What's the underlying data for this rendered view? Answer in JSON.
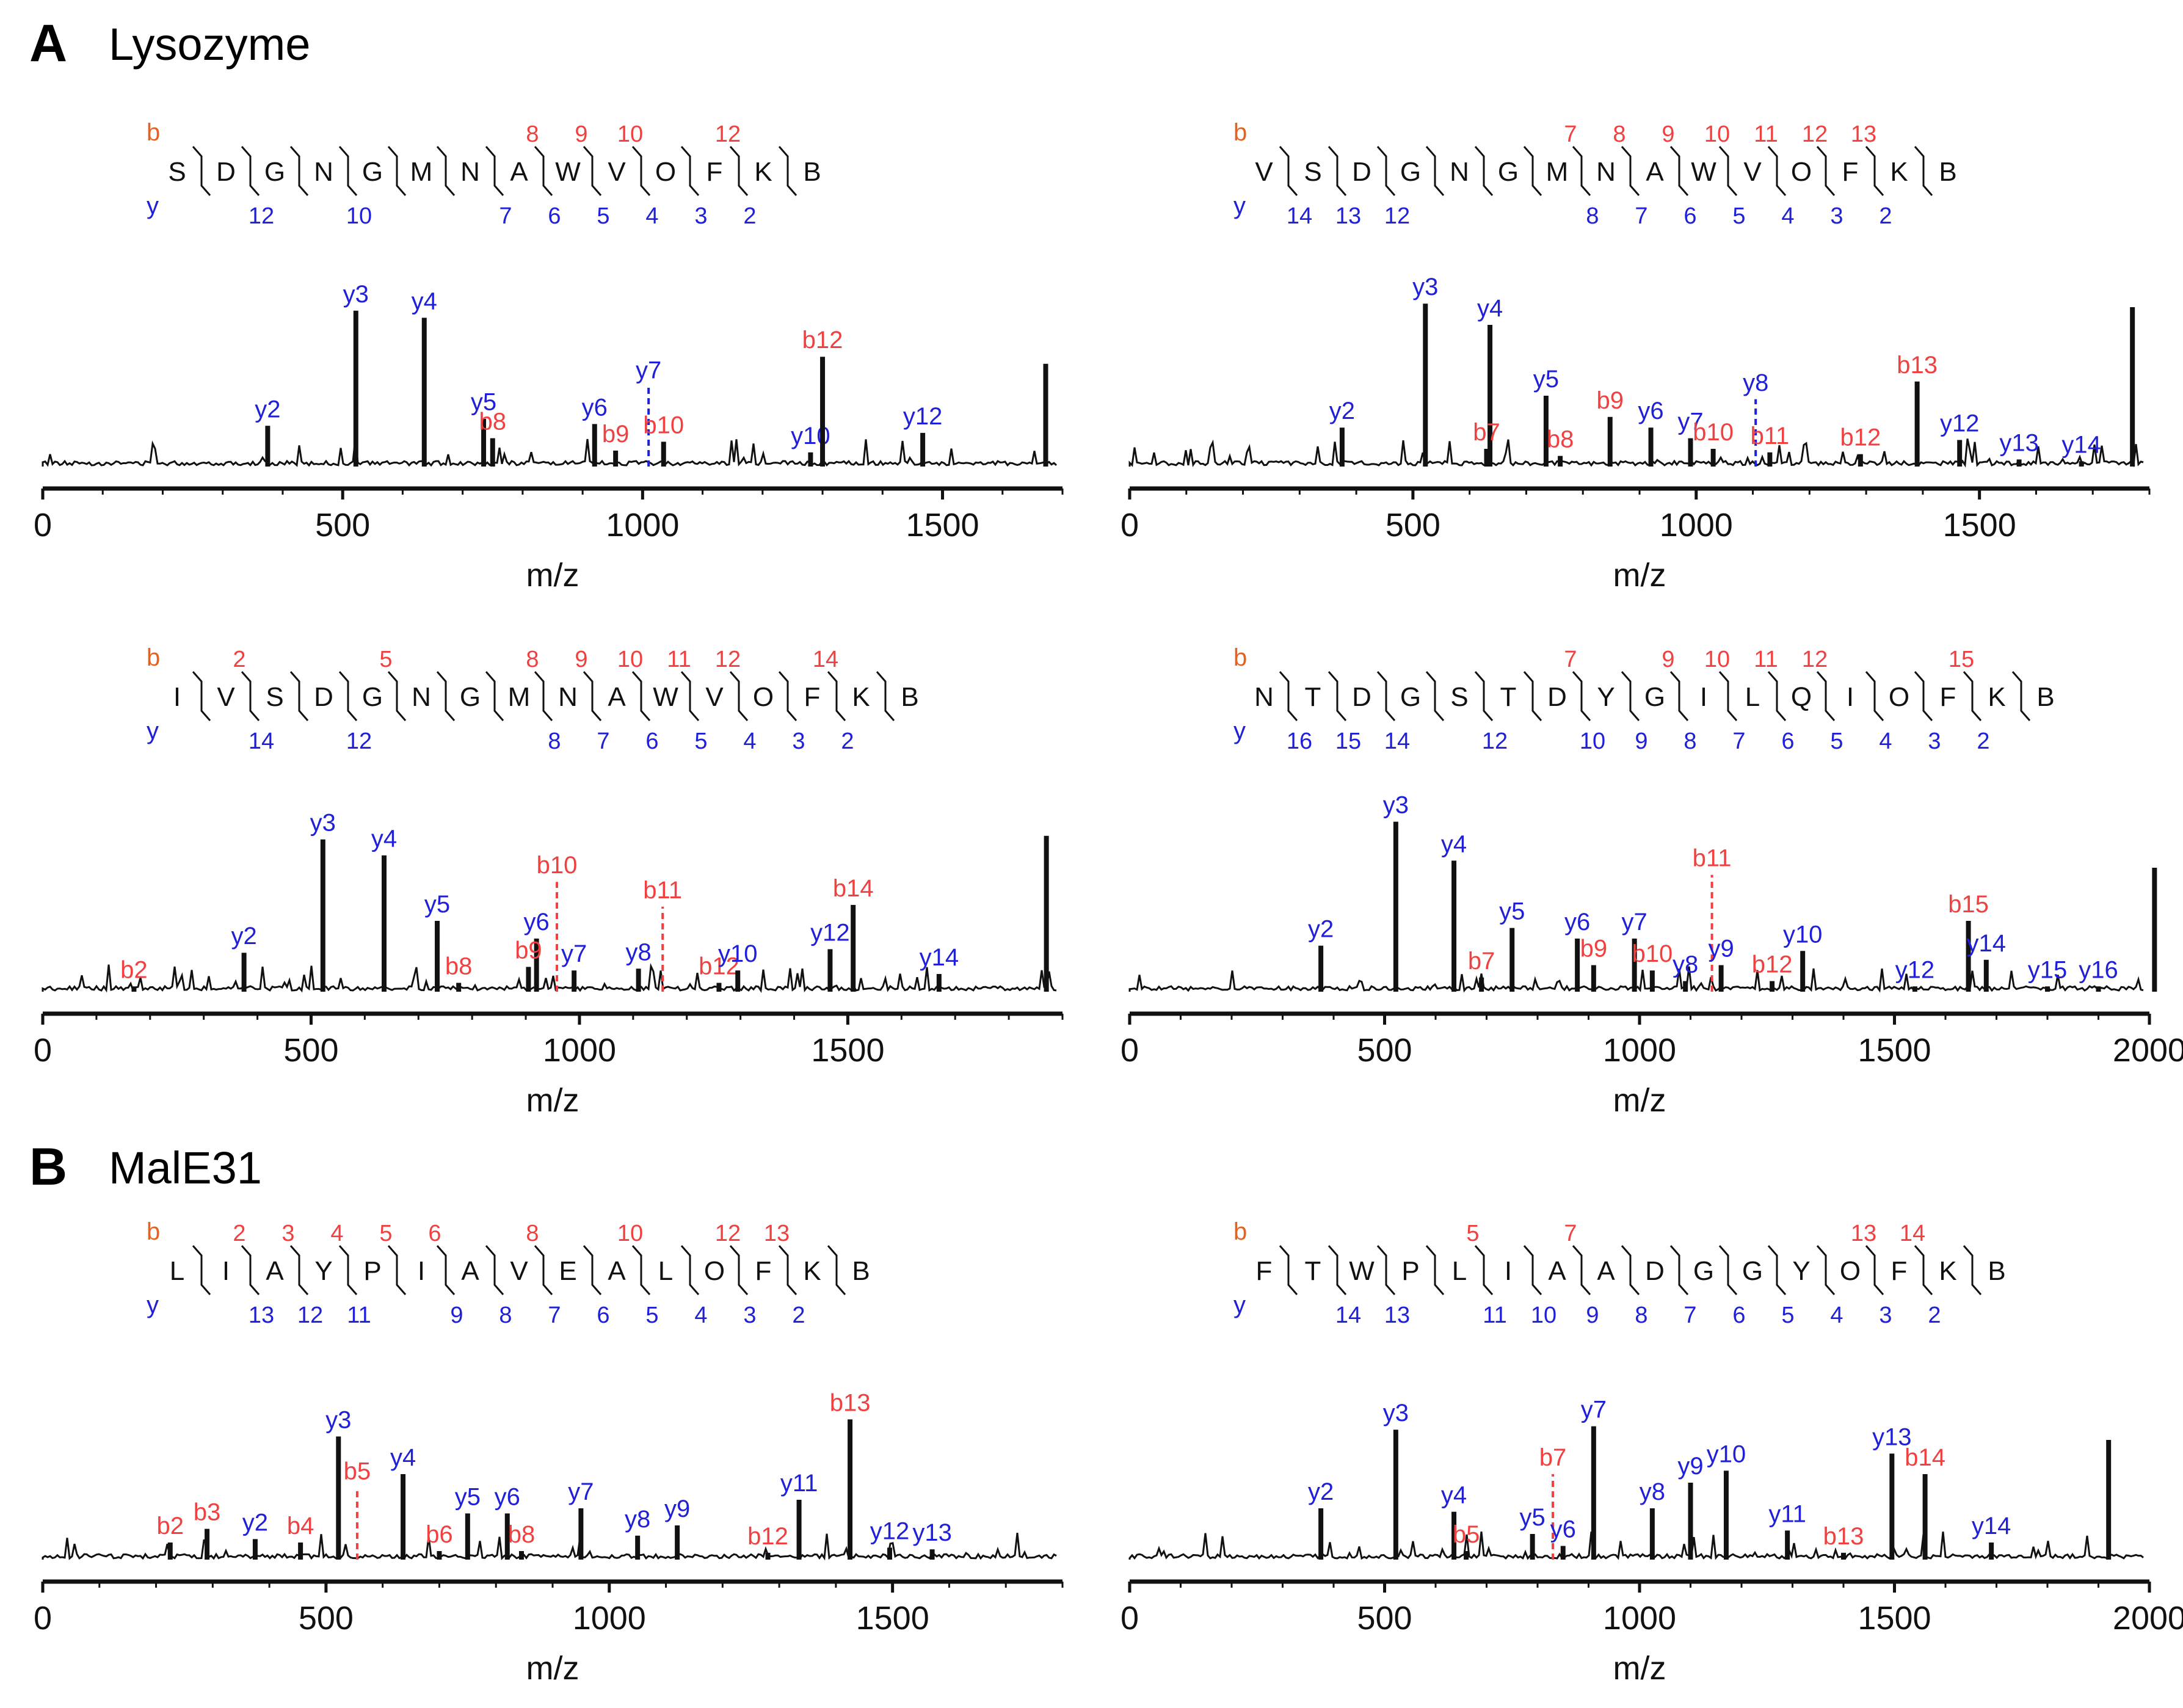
{
  "figure": {
    "sections": [
      {
        "letter": "A",
        "title": "Lysozyme"
      },
      {
        "letter": "B",
        "title": "MalE31"
      }
    ],
    "legend": {
      "b_label": "b",
      "y_label": "y",
      "b_color": "#f04040",
      "y_color": "#2020d8",
      "b_header_color": "#e8601c"
    }
  },
  "chart_data": [
    {
      "type": "bar",
      "title": "",
      "xlabel": "m/z",
      "ylabel": "",
      "xlim": [
        0,
        1700
      ],
      "xticks": [
        0,
        500,
        1000,
        1500
      ],
      "sequence": [
        "S",
        "D",
        "G",
        "N",
        "G",
        "M",
        "N",
        "A",
        "W",
        "V",
        "O",
        "F",
        "K",
        "B"
      ],
      "b_numbers": {
        "8": "8",
        "9": "9",
        "10": "10",
        "12": "12"
      },
      "y_numbers": {
        "12": "12",
        "10": "10",
        "7": "7",
        "6": "6",
        "5": "5",
        "4": "4",
        "3": "3",
        "2": "2"
      },
      "peaks": [
        {
          "mz": 375,
          "h": 0.23,
          "label": "y2",
          "ion": "y"
        },
        {
          "mz": 522,
          "h": 0.88,
          "label": "y3",
          "ion": "y"
        },
        {
          "mz": 636,
          "h": 0.84,
          "label": "y4",
          "ion": "y"
        },
        {
          "mz": 735,
          "h": 0.27,
          "label": "y5",
          "ion": "y"
        },
        {
          "mz": 750,
          "h": 0.16,
          "label": "b8",
          "ion": "b"
        },
        {
          "mz": 920,
          "h": 0.24,
          "label": "y6",
          "ion": "y"
        },
        {
          "mz": 1010,
          "h": 0.45,
          "label": "y7",
          "ion": "y",
          "dashed": true
        },
        {
          "mz": 955,
          "h": 0.09,
          "label": "b9",
          "ion": "b"
        },
        {
          "mz": 1035,
          "h": 0.14,
          "label": "b10",
          "ion": "b"
        },
        {
          "mz": 1280,
          "h": 0.08,
          "label": "y10",
          "ion": "y"
        },
        {
          "mz": 1300,
          "h": 0.62,
          "label": "b12",
          "ion": "b"
        },
        {
          "mz": 1467,
          "h": 0.19,
          "label": "y12",
          "ion": "y"
        },
        {
          "mz": 1672,
          "h": 0.58,
          "label": "",
          "ion": "none"
        }
      ]
    },
    {
      "type": "bar",
      "title": "",
      "xlabel": "m/z",
      "ylabel": "",
      "xlim": [
        0,
        1800
      ],
      "xticks": [
        0,
        500,
        1000,
        1500
      ],
      "sequence": [
        "V",
        "S",
        "D",
        "G",
        "N",
        "G",
        "M",
        "N",
        "A",
        "W",
        "V",
        "O",
        "F",
        "K",
        "B"
      ],
      "b_numbers": {
        "7": "7",
        "8": "8",
        "9": "9",
        "10": "10",
        "11": "11",
        "12": "12",
        "13": "13"
      },
      "y_numbers": {
        "14": "14",
        "13": "13",
        "12": "12",
        "8": "8",
        "7": "7",
        "6": "6",
        "5": "5",
        "4": "4",
        "3": "3",
        "2": "2"
      },
      "peaks": [
        {
          "mz": 375,
          "h": 0.22,
          "label": "y2",
          "ion": "y"
        },
        {
          "mz": 522,
          "h": 0.92,
          "label": "y3",
          "ion": "y"
        },
        {
          "mz": 636,
          "h": 0.8,
          "label": "y4",
          "ion": "y"
        },
        {
          "mz": 630,
          "h": 0.1,
          "label": "b7",
          "ion": "b"
        },
        {
          "mz": 735,
          "h": 0.4,
          "label": "y5",
          "ion": "y"
        },
        {
          "mz": 760,
          "h": 0.06,
          "label": "b8",
          "ion": "b"
        },
        {
          "mz": 848,
          "h": 0.28,
          "label": "b9",
          "ion": "b"
        },
        {
          "mz": 920,
          "h": 0.22,
          "label": "y6",
          "ion": "y"
        },
        {
          "mz": 990,
          "h": 0.16,
          "label": "y7",
          "ion": "y"
        },
        {
          "mz": 1030,
          "h": 0.1,
          "label": "b10",
          "ion": "b"
        },
        {
          "mz": 1105,
          "h": 0.38,
          "label": "y8",
          "ion": "y",
          "dashed": true
        },
        {
          "mz": 1130,
          "h": 0.08,
          "label": "b11",
          "ion": "b"
        },
        {
          "mz": 1290,
          "h": 0.07,
          "label": "b12",
          "ion": "b"
        },
        {
          "mz": 1390,
          "h": 0.48,
          "label": "b13",
          "ion": "b"
        },
        {
          "mz": 1465,
          "h": 0.15,
          "label": "y12",
          "ion": "y"
        },
        {
          "mz": 1570,
          "h": 0.04,
          "label": "y13",
          "ion": "y"
        },
        {
          "mz": 1680,
          "h": 0.03,
          "label": "y14",
          "ion": "y"
        },
        {
          "mz": 1770,
          "h": 0.9,
          "label": "",
          "ion": "none"
        }
      ]
    },
    {
      "type": "bar",
      "title": "",
      "xlabel": "m/z",
      "ylabel": "",
      "xlim": [
        0,
        1900
      ],
      "xticks": [
        0,
        500,
        1000,
        1500
      ],
      "sequence": [
        "I",
        "V",
        "S",
        "D",
        "G",
        "N",
        "G",
        "M",
        "N",
        "A",
        "W",
        "V",
        "O",
        "F",
        "K",
        "B"
      ],
      "b_numbers": {
        "2": "2",
        "5": "5",
        "8": "8",
        "9": "9",
        "10": "10",
        "11": "11",
        "12": "12",
        "14": "14"
      },
      "y_numbers": {
        "14": "14",
        "12": "12",
        "8": "8",
        "7": "7",
        "6": "6",
        "5": "5",
        "4": "4",
        "3": "3",
        "2": "2"
      },
      "peaks": [
        {
          "mz": 170,
          "h": 0.03,
          "label": "b2",
          "ion": "b"
        },
        {
          "mz": 375,
          "h": 0.22,
          "label": "y2",
          "ion": "y"
        },
        {
          "mz": 522,
          "h": 0.86,
          "label": "y3",
          "ion": "y"
        },
        {
          "mz": 636,
          "h": 0.77,
          "label": "y4",
          "ion": "y"
        },
        {
          "mz": 735,
          "h": 0.4,
          "label": "y5",
          "ion": "y"
        },
        {
          "mz": 775,
          "h": 0.05,
          "label": "b8",
          "ion": "b"
        },
        {
          "mz": 920,
          "h": 0.3,
          "label": "y6",
          "ion": "y"
        },
        {
          "mz": 905,
          "h": 0.14,
          "label": "b9",
          "ion": "b"
        },
        {
          "mz": 958,
          "h": 0.62,
          "label": "b10",
          "ion": "b",
          "dashed": true
        },
        {
          "mz": 990,
          "h": 0.12,
          "label": "y7",
          "ion": "y"
        },
        {
          "mz": 1110,
          "h": 0.13,
          "label": "y8",
          "ion": "y"
        },
        {
          "mz": 1155,
          "h": 0.48,
          "label": "b11",
          "ion": "b",
          "dashed": true
        },
        {
          "mz": 1260,
          "h": 0.05,
          "label": "b12",
          "ion": "b"
        },
        {
          "mz": 1295,
          "h": 0.12,
          "label": "y10",
          "ion": "y"
        },
        {
          "mz": 1467,
          "h": 0.24,
          "label": "y12",
          "ion": "y"
        },
        {
          "mz": 1510,
          "h": 0.49,
          "label": "b14",
          "ion": "b"
        },
        {
          "mz": 1670,
          "h": 0.1,
          "label": "y14",
          "ion": "y"
        },
        {
          "mz": 1870,
          "h": 0.88,
          "label": "",
          "ion": "none"
        }
      ]
    },
    {
      "type": "bar",
      "title": "",
      "xlabel": "m/z",
      "ylabel": "",
      "xlim": [
        0,
        2000
      ],
      "xticks": [
        0,
        500,
        1000,
        1500,
        2000
      ],
      "sequence": [
        "N",
        "T",
        "D",
        "G",
        "S",
        "T",
        "D",
        "Y",
        "G",
        "I",
        "L",
        "Q",
        "I",
        "O",
        "F",
        "K",
        "B"
      ],
      "b_numbers": {
        "7": "7",
        "9": "9",
        "10": "10",
        "11": "11",
        "12": "12",
        "15": "15"
      },
      "y_numbers": {
        "16": "16",
        "15": "15",
        "14": "14",
        "12": "12",
        "10": "10",
        "9": "9",
        "8": "8",
        "7": "7",
        "6": "6",
        "5": "5",
        "4": "4",
        "3": "3",
        "2": "2"
      },
      "peaks": [
        {
          "mz": 375,
          "h": 0.26,
          "label": "y2",
          "ion": "y"
        },
        {
          "mz": 522,
          "h": 0.96,
          "label": "y3",
          "ion": "y"
        },
        {
          "mz": 636,
          "h": 0.74,
          "label": "y4",
          "ion": "y"
        },
        {
          "mz": 690,
          "h": 0.08,
          "label": "b7",
          "ion": "b"
        },
        {
          "mz": 750,
          "h": 0.36,
          "label": "y5",
          "ion": "y"
        },
        {
          "mz": 878,
          "h": 0.3,
          "label": "y6",
          "ion": "y"
        },
        {
          "mz": 910,
          "h": 0.15,
          "label": "b9",
          "ion": "b"
        },
        {
          "mz": 990,
          "h": 0.3,
          "label": "y7",
          "ion": "y"
        },
        {
          "mz": 1025,
          "h": 0.12,
          "label": "b10",
          "ion": "b"
        },
        {
          "mz": 1090,
          "h": 0.06,
          "label": "y8",
          "ion": "y"
        },
        {
          "mz": 1142,
          "h": 0.66,
          "label": "b11",
          "ion": "b",
          "dashed": true
        },
        {
          "mz": 1160,
          "h": 0.15,
          "label": "y9",
          "ion": "y"
        },
        {
          "mz": 1260,
          "h": 0.06,
          "label": "b12",
          "ion": "b"
        },
        {
          "mz": 1320,
          "h": 0.23,
          "label": "y10",
          "ion": "y"
        },
        {
          "mz": 1540,
          "h": 0.03,
          "label": "y12",
          "ion": "y"
        },
        {
          "mz": 1645,
          "h": 0.4,
          "label": "b15",
          "ion": "b"
        },
        {
          "mz": 1680,
          "h": 0.18,
          "label": "y14",
          "ion": "y"
        },
        {
          "mz": 1800,
          "h": 0.03,
          "label": "y15",
          "ion": "y"
        },
        {
          "mz": 1900,
          "h": 0.03,
          "label": "y16",
          "ion": "y"
        },
        {
          "mz": 2010,
          "h": 0.7,
          "label": "",
          "ion": "none"
        }
      ]
    },
    {
      "type": "bar",
      "title": "",
      "xlabel": "m/z",
      "ylabel": "",
      "xlim": [
        0,
        1800
      ],
      "xticks": [
        0,
        500,
        1000,
        1500
      ],
      "sequence": [
        "L",
        "I",
        "A",
        "Y",
        "P",
        "I",
        "A",
        "V",
        "E",
        "A",
        "L",
        "O",
        "F",
        "K",
        "B"
      ],
      "b_numbers": {
        "2": "2",
        "3": "3",
        "4": "4",
        "5": "5",
        "6": "6",
        "8": "8",
        "10": "10",
        "12": "12",
        "13": "13"
      },
      "y_numbers": {
        "13": "13",
        "12": "12",
        "11": "11",
        "9": "9",
        "8": "8",
        "7": "7",
        "6": "6",
        "5": "5",
        "4": "4",
        "3": "3",
        "2": "2"
      },
      "peaks": [
        {
          "mz": 225,
          "h": 0.1,
          "label": "b2",
          "ion": "b"
        },
        {
          "mz": 290,
          "h": 0.18,
          "label": "b3",
          "ion": "b"
        },
        {
          "mz": 375,
          "h": 0.12,
          "label": "y2",
          "ion": "y"
        },
        {
          "mz": 455,
          "h": 0.1,
          "label": "b4",
          "ion": "b"
        },
        {
          "mz": 522,
          "h": 0.72,
          "label": "y3",
          "ion": "y"
        },
        {
          "mz": 555,
          "h": 0.42,
          "label": "b5",
          "ion": "b",
          "dashed": true
        },
        {
          "mz": 636,
          "h": 0.5,
          "label": "y4",
          "ion": "y"
        },
        {
          "mz": 700,
          "h": 0.05,
          "label": "b6",
          "ion": "b"
        },
        {
          "mz": 750,
          "h": 0.27,
          "label": "y5",
          "ion": "y"
        },
        {
          "mz": 820,
          "h": 0.27,
          "label": "y6",
          "ion": "y"
        },
        {
          "mz": 845,
          "h": 0.05,
          "label": "b8",
          "ion": "b"
        },
        {
          "mz": 950,
          "h": 0.3,
          "label": "y7",
          "ion": "y"
        },
        {
          "mz": 1050,
          "h": 0.14,
          "label": "y8",
          "ion": "y"
        },
        {
          "mz": 1120,
          "h": 0.2,
          "label": "y9",
          "ion": "y"
        },
        {
          "mz": 1280,
          "h": 0.04,
          "label": "b12",
          "ion": "b"
        },
        {
          "mz": 1335,
          "h": 0.35,
          "label": "y11",
          "ion": "y"
        },
        {
          "mz": 1425,
          "h": 0.82,
          "label": "b13",
          "ion": "b"
        },
        {
          "mz": 1495,
          "h": 0.07,
          "label": "y12",
          "ion": "y"
        },
        {
          "mz": 1570,
          "h": 0.06,
          "label": "y13",
          "ion": "y"
        }
      ]
    },
    {
      "type": "bar",
      "title": "",
      "xlabel": "m/z",
      "ylabel": "",
      "xlim": [
        0,
        2000
      ],
      "xticks": [
        0,
        500,
        1000,
        1500,
        2000
      ],
      "sequence": [
        "F",
        "T",
        "W",
        "P",
        "L",
        "I",
        "A",
        "A",
        "D",
        "G",
        "G",
        "Y",
        "O",
        "F",
        "K",
        "B"
      ],
      "b_numbers": {
        "5": "5",
        "7": "7",
        "13": "13",
        "14": "14"
      },
      "y_numbers": {
        "14": "14",
        "13": "13",
        "11": "11",
        "10": "10",
        "9": "9",
        "8": "8",
        "7": "7",
        "6": "6",
        "5": "5",
        "4": "4",
        "3": "3",
        "2": "2"
      },
      "peaks": [
        {
          "mz": 375,
          "h": 0.3,
          "label": "y2",
          "ion": "y"
        },
        {
          "mz": 522,
          "h": 0.76,
          "label": "y3",
          "ion": "y"
        },
        {
          "mz": 636,
          "h": 0.28,
          "label": "y4",
          "ion": "y"
        },
        {
          "mz": 660,
          "h": 0.05,
          "label": "b5",
          "ion": "b"
        },
        {
          "mz": 790,
          "h": 0.15,
          "label": "y5",
          "ion": "y"
        },
        {
          "mz": 830,
          "h": 0.5,
          "label": "b7",
          "ion": "b",
          "dashed": true
        },
        {
          "mz": 850,
          "h": 0.08,
          "label": "y6",
          "ion": "y"
        },
        {
          "mz": 910,
          "h": 0.78,
          "label": "y7",
          "ion": "y"
        },
        {
          "mz": 1025,
          "h": 0.3,
          "label": "y8",
          "ion": "y"
        },
        {
          "mz": 1100,
          "h": 0.45,
          "label": "y9",
          "ion": "y"
        },
        {
          "mz": 1170,
          "h": 0.52,
          "label": "y10",
          "ion": "y"
        },
        {
          "mz": 1290,
          "h": 0.17,
          "label": "y11",
          "ion": "y"
        },
        {
          "mz": 1400,
          "h": 0.04,
          "label": "b13",
          "ion": "b"
        },
        {
          "mz": 1495,
          "h": 0.62,
          "label": "y13",
          "ion": "y"
        },
        {
          "mz": 1560,
          "h": 0.5,
          "label": "b14",
          "ion": "b"
        },
        {
          "mz": 1690,
          "h": 0.1,
          "label": "y14",
          "ion": "y"
        },
        {
          "mz": 1920,
          "h": 0.7,
          "label": "",
          "ion": "none"
        }
      ]
    }
  ]
}
